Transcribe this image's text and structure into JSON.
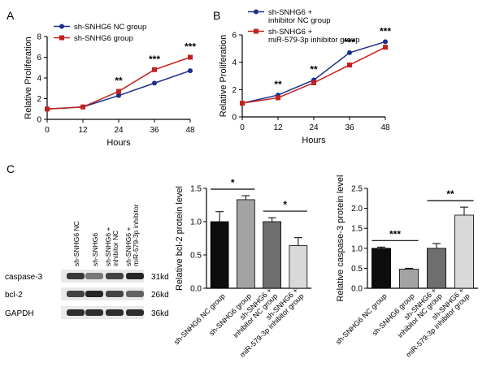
{
  "panel_letters": [
    "A",
    "B",
    "C"
  ],
  "colors": {
    "series_blue": "#1c2f8c",
    "series_red": "#c42020",
    "axis": "#000000"
  },
  "chart_data": [
    {
      "panel": "A",
      "type": "line",
      "xlabel": "Hours",
      "ylabel": "Relative Proliferation",
      "xticks": [
        0,
        12,
        24,
        36,
        48
      ],
      "yticks": [
        0,
        2,
        4,
        6,
        8
      ],
      "xlim": [
        0,
        48
      ],
      "ylim": [
        0,
        8
      ],
      "legend": "top-left",
      "series": [
        {
          "name": "sh-SNHG6 NC group",
          "color": "#1c2f8c",
          "marker": "circle",
          "x": [
            0,
            12,
            24,
            36,
            48
          ],
          "values": [
            1.0,
            1.2,
            2.3,
            3.5,
            4.7
          ]
        },
        {
          "name": "sh-SNHG6 group",
          "color": "#c42020",
          "marker": "square",
          "x": [
            0,
            12,
            24,
            36,
            48
          ],
          "values": [
            1.0,
            1.2,
            2.7,
            4.8,
            6.0
          ]
        }
      ],
      "annotations": [
        {
          "x": 24,
          "text": "**"
        },
        {
          "x": 36,
          "text": "***"
        },
        {
          "x": 48,
          "text": "***"
        }
      ]
    },
    {
      "panel": "B",
      "type": "line",
      "xlabel": "Hours",
      "ylabel": "Relative Proliferation",
      "xticks": [
        0,
        12,
        24,
        36,
        48
      ],
      "yticks": [
        0,
        2,
        4,
        6
      ],
      "xlim": [
        0,
        48
      ],
      "ylim": [
        0,
        6
      ],
      "legend": "top-left",
      "series": [
        {
          "name": "sh-SNHG6 + inhibitor NC group",
          "legend_lines": [
            "sh-SNHG6 +",
            "inhibitor NC group"
          ],
          "color": "#1c2f8c",
          "marker": "circle",
          "x": [
            0,
            12,
            24,
            36,
            48
          ],
          "values": [
            1.0,
            1.6,
            2.7,
            4.7,
            5.5
          ]
        },
        {
          "name": "sh-SNHG6 + miR-579-3p inhibitor group",
          "legend_lines": [
            "sh-SNHG6 +",
            "miR-579-3p inhibitor group"
          ],
          "color": "#c42020",
          "marker": "square",
          "x": [
            0,
            12,
            24,
            36,
            48
          ],
          "values": [
            1.0,
            1.4,
            2.5,
            3.8,
            5.1
          ]
        }
      ],
      "annotations": [
        {
          "x": 12,
          "text": "**"
        },
        {
          "x": 24,
          "text": "**"
        },
        {
          "x": 36,
          "text": "***"
        },
        {
          "x": 48,
          "text": "***"
        }
      ]
    },
    {
      "panel": "C-bcl2",
      "type": "bar",
      "ylabel": "Relative bcl-2 protein level",
      "yticks": [
        0.0,
        0.5,
        1.0,
        1.5
      ],
      "ylim": [
        0,
        1.5
      ],
      "categories": [
        [
          "sh-SNHG6 NC group"
        ],
        [
          "sh-SNHG6 group"
        ],
        [
          "sh-SNHG6 +",
          "inhibitor NC group"
        ],
        [
          "sh-SNHG6 +",
          "miR-579-3p inhibitor group"
        ]
      ],
      "values": [
        1.0,
        1.33,
        1.0,
        0.64
      ],
      "errors": [
        0.15,
        0.06,
        0.06,
        0.12
      ],
      "bar_colors": [
        "#0d0d0d",
        "#a3a3a3",
        "#6e6e6e",
        "#d9d9d9"
      ],
      "brackets": [
        {
          "from": 0,
          "to": 1,
          "text": "*"
        },
        {
          "from": 2,
          "to": 3,
          "text": "*"
        }
      ]
    },
    {
      "panel": "C-caspase3",
      "type": "bar",
      "ylabel": "Relative caspase-3 protein level",
      "yticks": [
        0.0,
        0.5,
        1.0,
        1.5,
        2.0,
        2.5
      ],
      "ylim": [
        0,
        2.5
      ],
      "categories": [
        [
          "sh-SNHG6 NC group"
        ],
        [
          "sh-SNHG6 group"
        ],
        [
          "sh-SNHG6 +",
          "inhibitor NC group"
        ],
        [
          "sh-SNHG6 +",
          "miR-579-3p inhibitor group"
        ]
      ],
      "values": [
        1.0,
        0.48,
        1.0,
        1.83
      ],
      "errors": [
        0.03,
        0.02,
        0.12,
        0.2
      ],
      "bar_colors": [
        "#0d0d0d",
        "#a3a3a3",
        "#6e6e6e",
        "#d9d9d9"
      ],
      "brackets": [
        {
          "from": 0,
          "to": 1,
          "text": "***"
        },
        {
          "from": 2,
          "to": 3,
          "text": "**"
        }
      ]
    }
  ],
  "western_blot": {
    "lanes": [
      [
        "sh-SNHG6 NC"
      ],
      [
        "sh-SNHG6"
      ],
      [
        "sh-SNHG6 +",
        "inhibitor NC"
      ],
      [
        "sh-SNHG6 +",
        "miR-579-3p inhibitor"
      ]
    ],
    "rows": [
      {
        "protein": "caspase-3",
        "size": "31kd",
        "intensity": [
          0.85,
          0.55,
          0.8,
          0.95
        ]
      },
      {
        "protein": "bcl-2",
        "size": "26kd",
        "intensity": [
          0.8,
          0.95,
          0.8,
          0.65
        ]
      },
      {
        "protein": "GAPDH",
        "size": "36kd",
        "intensity": [
          0.9,
          0.9,
          0.9,
          0.9
        ]
      }
    ]
  }
}
